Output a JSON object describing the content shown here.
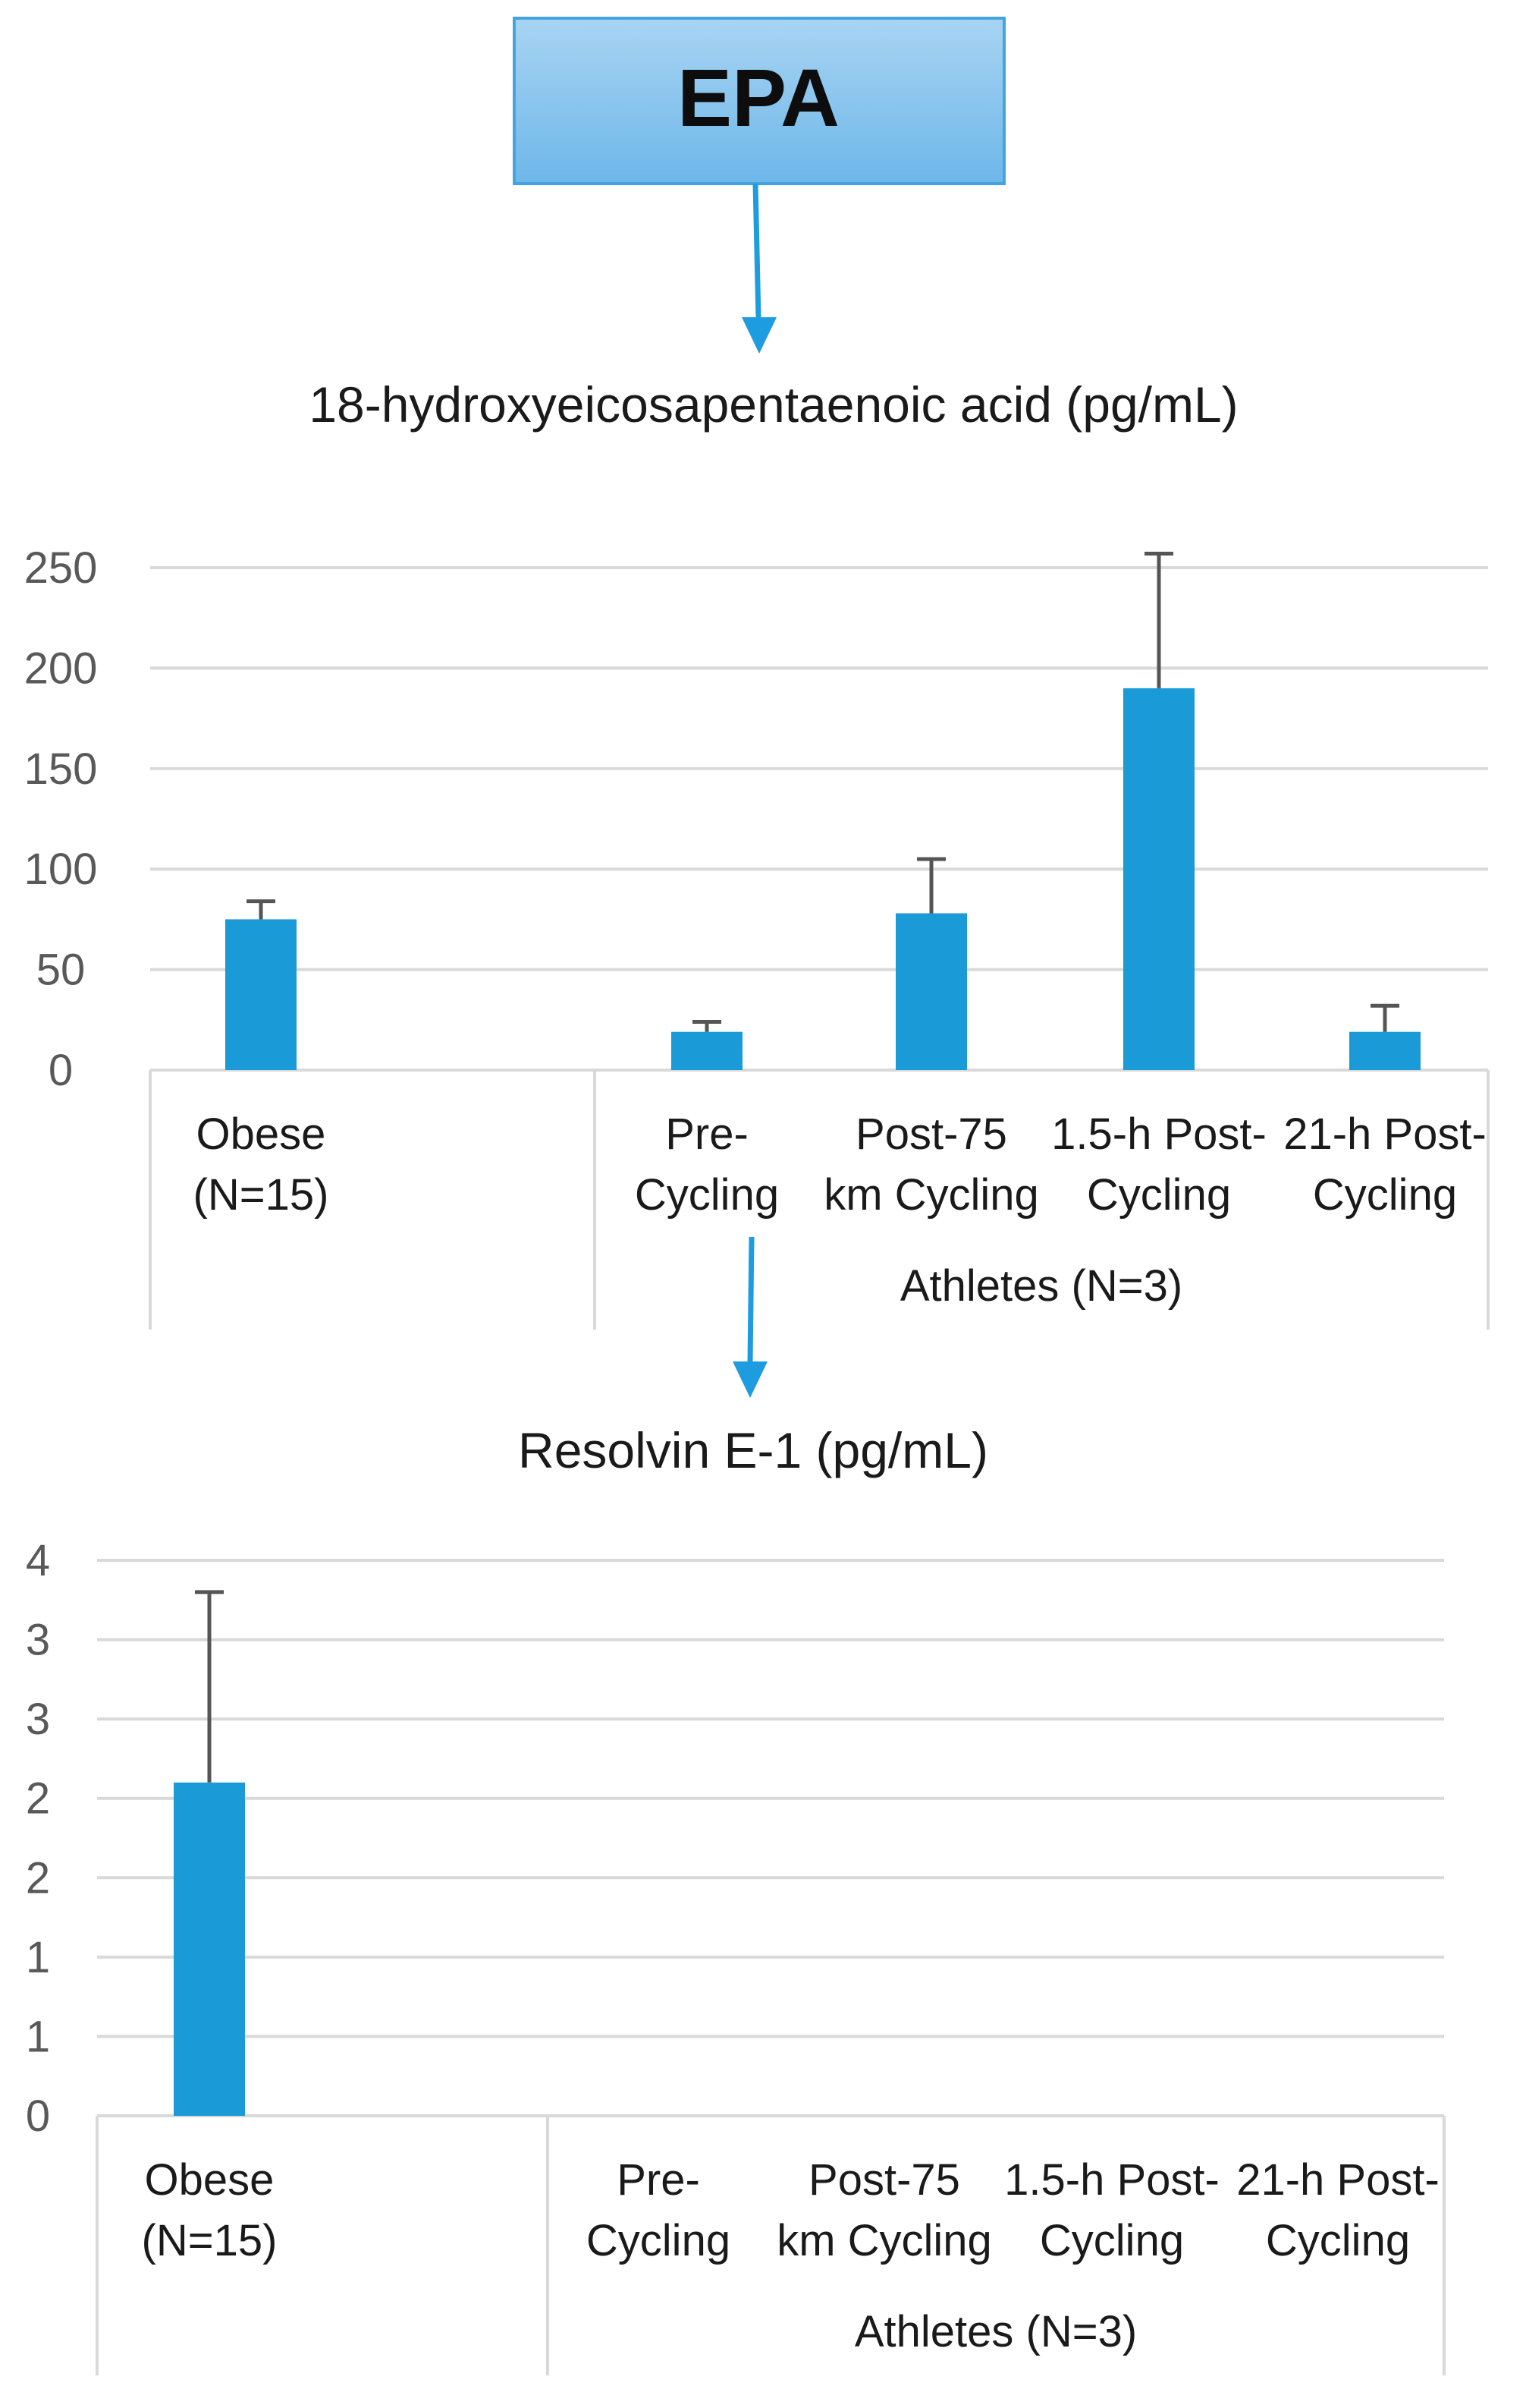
{
  "header_box": {
    "label": "EPA"
  },
  "colors": {
    "bar": "#1a9ad7",
    "error_bar": "#555555",
    "arrow": "#1e9ce0",
    "grid": "#d9d9d9",
    "axis_text": "#595959",
    "box_top": "#a8d4f2",
    "box_bottom": "#6db7ea",
    "box_border": "#45a3e0"
  },
  "chart_data": [
    {
      "type": "bar",
      "title": "18-hydroxyeicosapentaenoic acid (pg/mL)",
      "categories": [
        {
          "lines": [
            "Obese",
            "(N=15)"
          ],
          "value": 75,
          "error": 9
        },
        {
          "lines": [
            "Pre-",
            "Cycling"
          ],
          "value": 19,
          "error": 5
        },
        {
          "lines": [
            "Post-75",
            "km Cycling"
          ],
          "value": 78,
          "error": 27
        },
        {
          "lines": [
            "1.5-h Post-",
            "Cycling"
          ],
          "value": 190,
          "error": 67
        },
        {
          "lines": [
            "21-h Post-",
            "Cycling"
          ],
          "value": 19,
          "error": 13
        }
      ],
      "group_label": "Athletes (N=3)",
      "ylim": [
        0,
        250
      ],
      "y_ticks": [
        0,
        50,
        100,
        150,
        200,
        250
      ],
      "y_tick_labels": [
        "0",
        "50",
        "100",
        "150",
        "200",
        "250"
      ],
      "grid": true
    },
    {
      "type": "bar",
      "title": "Resolvin E-1 (pg/mL)",
      "categories": [
        {
          "lines": [
            "Obese",
            "(N=15)"
          ],
          "value": 2.1,
          "error": 1.2
        },
        {
          "lines": [
            "Pre-",
            "Cycling"
          ],
          "value": null,
          "error": null
        },
        {
          "lines": [
            "Post-75",
            "km Cycling"
          ],
          "value": null,
          "error": null
        },
        {
          "lines": [
            "1.5-h Post-",
            "Cycling"
          ],
          "value": null,
          "error": null
        },
        {
          "lines": [
            "21-h Post-",
            "Cycling"
          ],
          "value": null,
          "error": null
        }
      ],
      "group_label": "Athletes (N=3)",
      "ylim": [
        0,
        3.5
      ],
      "y_ticks": [
        0,
        0.5,
        1,
        1.5,
        2,
        2.5,
        3,
        3.5
      ],
      "y_tick_labels": [
        "0",
        "1",
        "1",
        "2",
        "2",
        "3",
        "3",
        "4"
      ],
      "grid": true
    }
  ]
}
